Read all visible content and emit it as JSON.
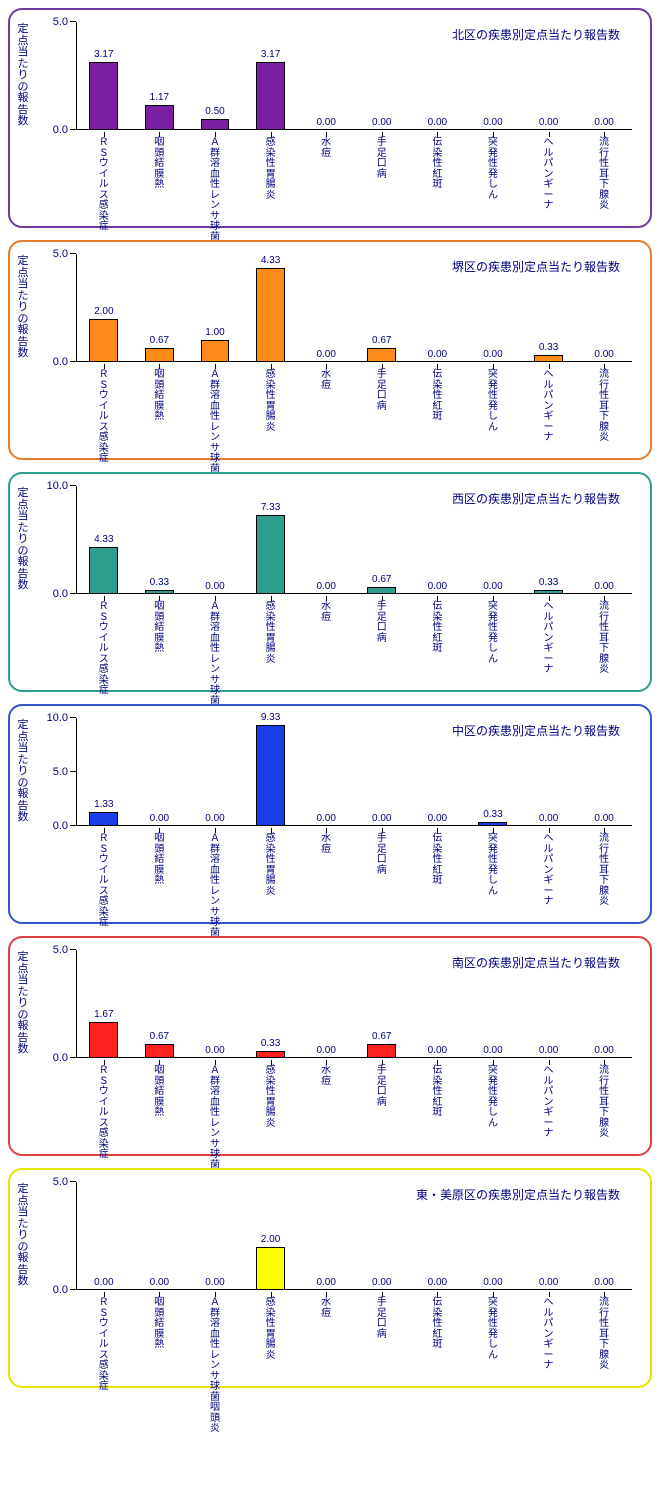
{
  "y_axis_label": "定点当たりの報告数",
  "categories": [
    "ＲＳウイルス感染症",
    "咽頭結膜熱",
    "Ａ群溶血性レンサ球菌咽頭炎",
    "感染性胃腸炎",
    "水痘",
    "手足口病",
    "伝染性紅斑",
    "突発性発しん",
    "ヘルパンギーナ",
    "流行性耳下腺炎"
  ],
  "charts": [
    {
      "title": "北区の疾患別定点当たり報告数",
      "border_color": "#6a3d9a",
      "bar_color": "#7b1fa2",
      "ylim": [
        0,
        5
      ],
      "ytick_step": 5,
      "values": [
        3.17,
        1.17,
        0.5,
        3.17,
        0.0,
        0.0,
        0.0,
        0.0,
        0.0,
        0.0
      ]
    },
    {
      "title": "堺区の疾患別定点当たり報告数",
      "border_color": "#e57c2b",
      "bar_color": "#ff8c1a",
      "ylim": [
        0,
        5
      ],
      "ytick_step": 5,
      "values": [
        2.0,
        0.67,
        1.0,
        4.33,
        0.0,
        0.67,
        0.0,
        0.0,
        0.33,
        0.0
      ]
    },
    {
      "title": "西区の疾患別定点当たり報告数",
      "border_color": "#2e9e8f",
      "bar_color": "#2e9e8f",
      "ylim": [
        0,
        10
      ],
      "ytick_step": 10,
      "values": [
        4.33,
        0.33,
        0.0,
        7.33,
        0.0,
        0.67,
        0.0,
        0.0,
        0.33,
        0.0
      ]
    },
    {
      "title": "中区の疾患別定点当たり報告数",
      "border_color": "#3355cc",
      "bar_color": "#1a3ee8",
      "ylim": [
        0,
        10
      ],
      "ytick_step": 5,
      "values": [
        1.33,
        0.0,
        0.0,
        9.33,
        0.0,
        0.0,
        0.0,
        0.33,
        0.0,
        0.0
      ]
    },
    {
      "title": "南区の疾患別定点当たり報告数",
      "border_color": "#e04040",
      "bar_color": "#ff2020",
      "ylim": [
        0,
        5
      ],
      "ytick_step": 5,
      "values": [
        1.67,
        0.67,
        0.0,
        0.33,
        0.0,
        0.67,
        0.0,
        0.0,
        0.0,
        0.0
      ]
    },
    {
      "title": "東・美原区の疾患別定点当たり報告数",
      "border_color": "#e6e600",
      "bar_color": "#ffff00",
      "ylim": [
        0,
        5
      ],
      "ytick_step": 5,
      "values": [
        0.0,
        0.0,
        0.0,
        2.0,
        0.0,
        0.0,
        0.0,
        0.0,
        0.0,
        0.0
      ]
    }
  ],
  "tick_decimals": 1,
  "value_decimals": 2
}
